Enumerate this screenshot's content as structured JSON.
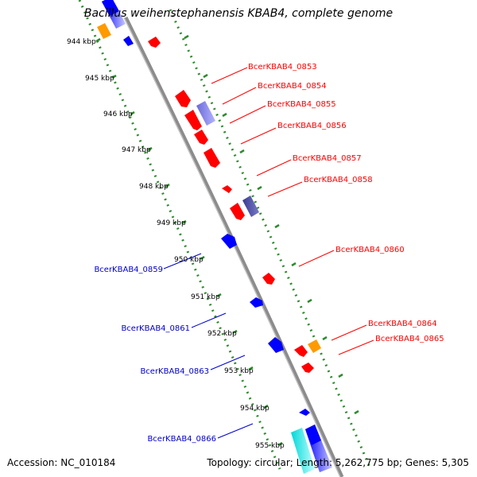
{
  "title": "Bacillus weihenstephanensis KBAB4, complete genome",
  "footer": {
    "accession": "Accession: NC_010184",
    "topology": "Topology: circular; Length: 5,262,775 bp; Genes: 5,305"
  },
  "colors": {
    "backbone": "#8c8c8c",
    "scale_ticks": "#2e8b2e",
    "forward_gene": "#ff0000",
    "reverse_gene": "#0000ff",
    "rna_gene": "#ff9a00",
    "forward_label": "#ff0000",
    "reverse_label": "#0000cc"
  },
  "scale_labels": [
    "944 kbp",
    "945 kbp",
    "946 kbp",
    "947 kbp",
    "948 kbp",
    "949 kbp",
    "950 kbp",
    "951 kbp",
    "952 kbp",
    "953 kbp",
    "954 kbp",
    "955 kbp"
  ],
  "forward_labels": [
    "BcerKBAB4_0853",
    "BcerKBAB4_0854",
    "BcerKBAB4_0855",
    "BcerKBAB4_0856",
    "BcerKBAB4_0857",
    "BcerKBAB4_0858",
    "BcerKBAB4_0860",
    "BcerKBAB4_0864",
    "BcerKBAB4_0865"
  ],
  "reverse_labels": [
    "BcerKBAB4_0859",
    "BcerKBAB4_0861",
    "BcerKBAB4_0863",
    "BcerKBAB4_0866"
  ]
}
